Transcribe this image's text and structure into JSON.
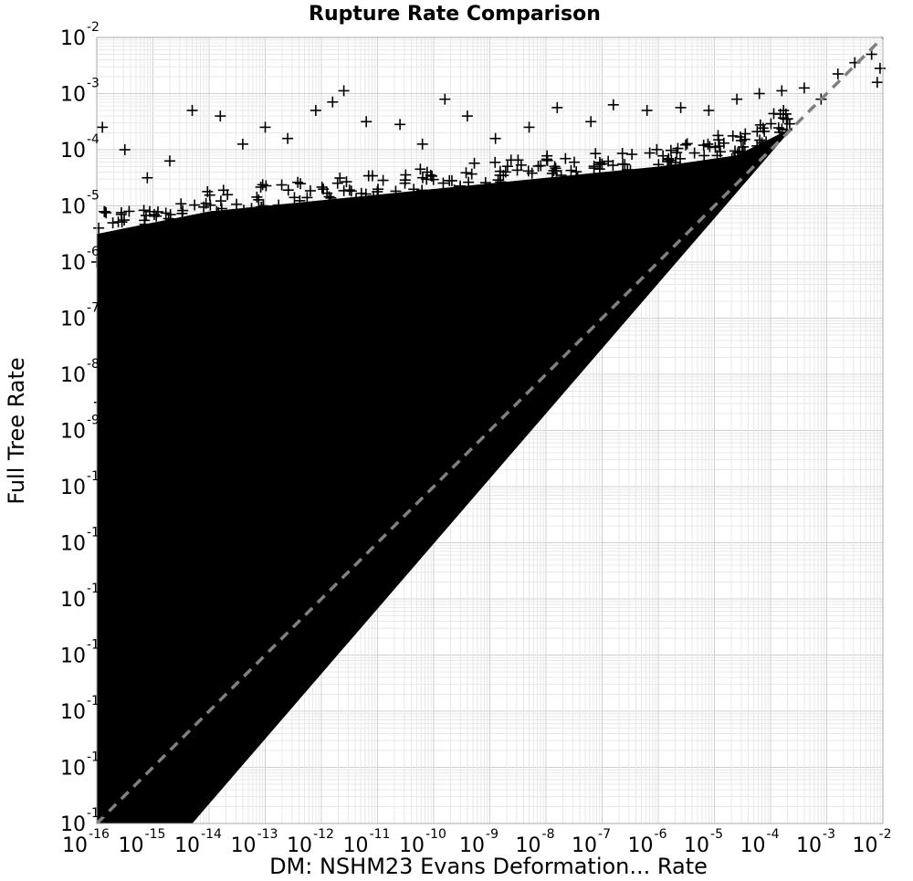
{
  "chart_data": {
    "type": "scatter",
    "title": "Rupture Rate Comparison",
    "xlabel": "DM: NSHM23 Evans Deformation... Rate",
    "ylabel": "Full Tree Rate",
    "x_scale": "log",
    "y_scale": "log",
    "xlim": [
      1e-16,
      0.01
    ],
    "ylim": [
      1e-16,
      0.01
    ],
    "grid": true,
    "marker": "plus",
    "marker_color": "#000000",
    "reference_line": {
      "style": "dashed",
      "color": "#808080",
      "x": [
        1e-16,
        0.01
      ],
      "y": [
        1e-16,
        0.01
      ]
    },
    "x_ticks": [
      {
        "base": "10",
        "exp": "-16"
      },
      {
        "base": "10",
        "exp": "-15"
      },
      {
        "base": "10",
        "exp": "-14"
      },
      {
        "base": "10",
        "exp": "-13"
      },
      {
        "base": "10",
        "exp": "-12"
      },
      {
        "base": "10",
        "exp": "-11"
      },
      {
        "base": "10",
        "exp": "-10"
      },
      {
        "base": "10",
        "exp": "-9"
      },
      {
        "base": "10",
        "exp": "-8"
      },
      {
        "base": "10",
        "exp": "-7"
      },
      {
        "base": "10",
        "exp": "-6"
      },
      {
        "base": "10",
        "exp": "-5"
      },
      {
        "base": "10",
        "exp": "-4"
      },
      {
        "base": "10",
        "exp": "-3"
      },
      {
        "base": "10",
        "exp": "-2"
      }
    ],
    "y_ticks": [
      {
        "base": "10",
        "exp": "-16"
      },
      {
        "base": "10",
        "exp": "-15"
      },
      {
        "base": "10",
        "exp": "-14"
      },
      {
        "base": "10",
        "exp": "-13"
      },
      {
        "base": "10",
        "exp": "-12"
      },
      {
        "base": "10",
        "exp": "-11"
      },
      {
        "base": "10",
        "exp": "-10"
      },
      {
        "base": "10",
        "exp": "-9"
      },
      {
        "base": "10",
        "exp": "-8"
      },
      {
        "base": "10",
        "exp": "-7"
      },
      {
        "base": "10",
        "exp": "-6"
      },
      {
        "base": "10",
        "exp": "-5"
      },
      {
        "base": "10",
        "exp": "-4"
      },
      {
        "base": "10",
        "exp": "-3"
      },
      {
        "base": "10",
        "exp": "-2"
      }
    ],
    "density_region": {
      "description": "dense cloud of rupture rate points filling the area above the 1:1 line",
      "vertices_log10": [
        [
          -16,
          -16
        ],
        [
          -16,
          -5.5
        ],
        [
          -14,
          -5.1
        ],
        [
          -12,
          -4.9
        ],
        [
          -10,
          -4.7
        ],
        [
          -8,
          -4.5
        ],
        [
          -6,
          -4.3
        ],
        [
          -4.6,
          -4.1
        ],
        [
          -3.6,
          -3.6
        ],
        [
          -14.3,
          -16
        ]
      ]
    },
    "outliers_log10": [
      [
        -15.9,
        -3.6
      ],
      [
        -15.5,
        -4.0
      ],
      [
        -15.1,
        -4.5
      ],
      [
        -14.7,
        -4.2
      ],
      [
        -14.3,
        -3.3
      ],
      [
        -13.8,
        -3.4
      ],
      [
        -13.4,
        -3.9
      ],
      [
        -13.0,
        -3.6
      ],
      [
        -12.6,
        -3.8
      ],
      [
        -12.1,
        -3.3
      ],
      [
        -11.6,
        -2.95
      ],
      [
        -11.8,
        -3.15
      ],
      [
        -11.2,
        -3.5
      ],
      [
        -10.6,
        -3.55
      ],
      [
        -10.2,
        -3.9
      ],
      [
        -9.8,
        -3.1
      ],
      [
        -9.4,
        -3.4
      ],
      [
        -8.9,
        -3.8
      ],
      [
        -8.3,
        -3.6
      ],
      [
        -7.8,
        -3.25
      ],
      [
        -7.2,
        -3.5
      ],
      [
        -6.8,
        -3.2
      ],
      [
        -6.2,
        -3.3
      ],
      [
        -5.6,
        -3.25
      ],
      [
        -5.1,
        -3.3
      ],
      [
        -4.6,
        -3.1
      ],
      [
        -4.2,
        -3.0
      ],
      [
        -3.8,
        -2.95
      ],
      [
        -3.4,
        -2.9
      ],
      [
        -3.1,
        -3.1
      ],
      [
        -2.8,
        -2.65
      ],
      [
        -2.5,
        -2.45
      ],
      [
        -2.2,
        -2.3
      ],
      [
        -2.05,
        -2.55
      ],
      [
        -2.1,
        -2.8
      ],
      [
        -16.0,
        -6.0
      ],
      [
        -15.9,
        -7.0
      ],
      [
        -15.95,
        -8.5
      ],
      [
        -15.9,
        -9.8
      ]
    ]
  }
}
